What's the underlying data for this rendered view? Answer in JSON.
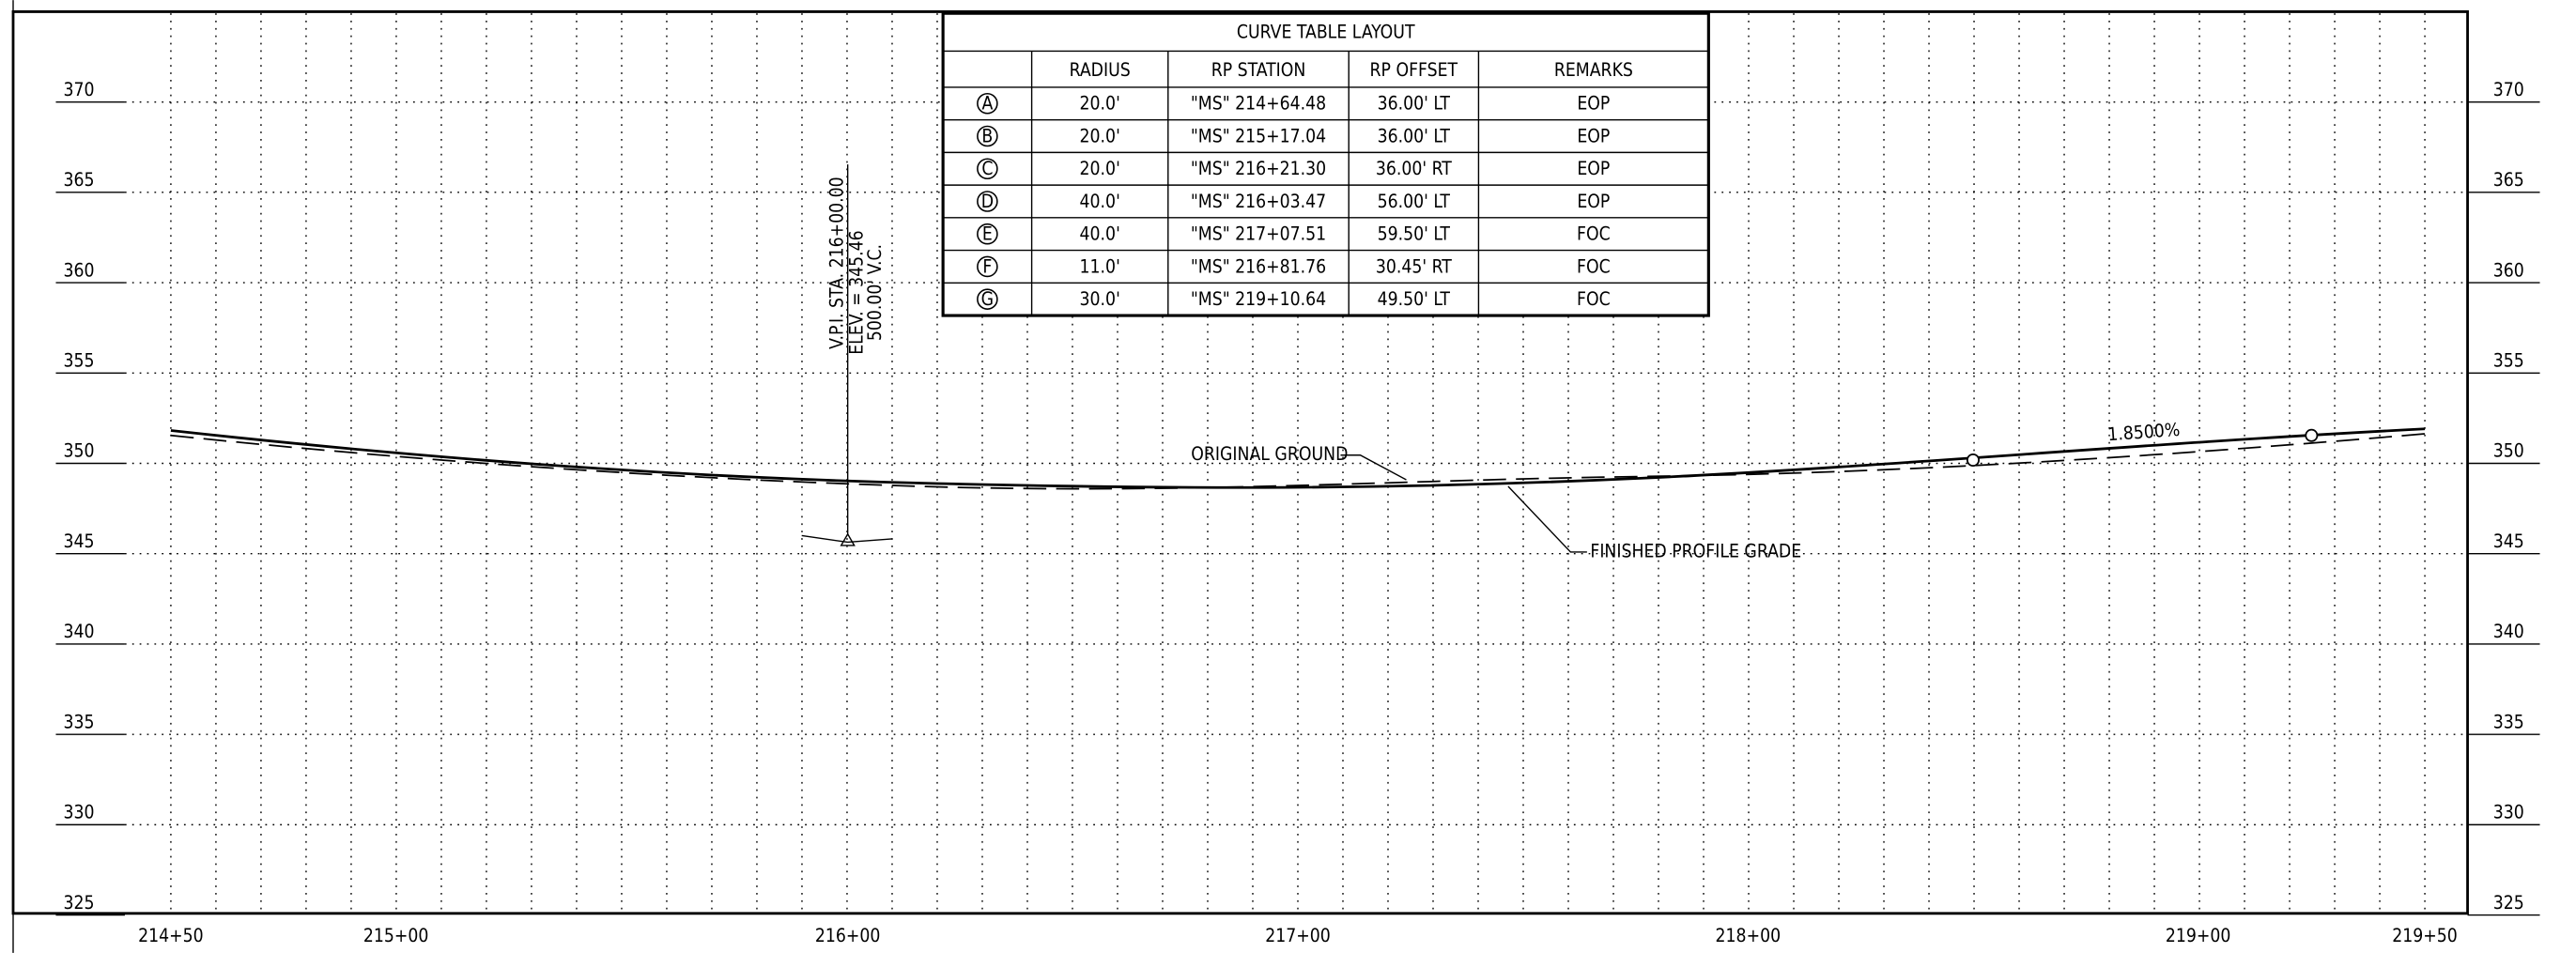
{
  "y_axis": [
    370,
    365,
    360,
    355,
    350,
    345,
    340,
    335,
    330,
    325
  ],
  "x_axis": [
    "214+50",
    "215+00",
    "216+00",
    "217+00",
    "218+00",
    "219+00",
    "219+50"
  ],
  "curve_table": {
    "title": "CURVE TABLE LAYOUT",
    "headers": [
      "RADIUS",
      "RP STATION",
      "RP OFFSET",
      "REMARKS"
    ],
    "rows": [
      [
        "A",
        "20.0'",
        "\"MS\" 214+64.48",
        "36.00' LT",
        "EOP"
      ],
      [
        "B",
        "20.0'",
        "\"MS\" 215+17.04",
        "36.00' LT",
        "EOP"
      ],
      [
        "C",
        "20.0'",
        "\"MS\" 216+21.30",
        "36.00' RT",
        "EOP"
      ],
      [
        "D",
        "40.0'",
        "\"MS\" 216+03.47",
        "56.00' LT",
        "EOP"
      ],
      [
        "E",
        "40.0'",
        "\"MS\" 217+07.51",
        "59.50' LT",
        "FOC"
      ],
      [
        "F",
        "11.0'",
        "\"MS\" 216+81.76",
        "30.45' RT",
        "FOC"
      ],
      [
        "G",
        "30.0'",
        "\"MS\" 219+10.64",
        "49.50' LT",
        "FOC"
      ]
    ]
  },
  "annotations": {
    "vpi": [
      "V.P.I. STA. 216+00.00",
      "ELEV. = 345.46",
      "500.00' V.C."
    ],
    "original_ground": "ORIGINAL GROUND",
    "finished_grade": "FINISHED PROFILE GRADE",
    "slope": "1.8500%"
  }
}
